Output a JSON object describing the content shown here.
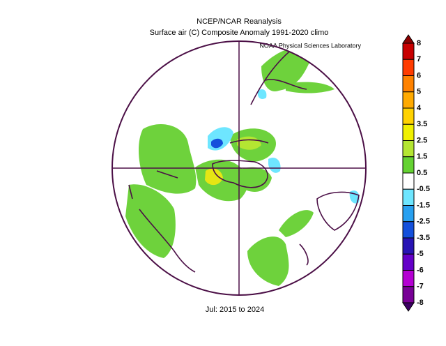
{
  "header": {
    "title": "NCEP/NCAR Reanalysis",
    "subtitle": "Surface air (C) Composite Anomaly 1991-2020 climo",
    "credit": "NOAA Physical Sciences Laboratory"
  },
  "footer": "Jul: 2015 to 2024",
  "colorbar": {
    "labels": [
      "8",
      "7",
      "6",
      "5",
      "4",
      "3.5",
      "2.5",
      "1.5",
      "0.5",
      "-0.5",
      "-1.5",
      "-2.5",
      "-3.5",
      "-5",
      "-6",
      "-7",
      "-8"
    ],
    "colors": [
      "#c80000",
      "#ff3c00",
      "#ff8200",
      "#ffaa00",
      "#ffd200",
      "#f0f000",
      "#b4e632",
      "#64d232",
      "#ffffff",
      "#6ee6ff",
      "#28a0f0",
      "#1450dc",
      "#2814b4",
      "#6400c8",
      "#b400d2",
      "#780096"
    ],
    "top_color": "#8c0000",
    "bottom_color": "#3c0064"
  }
}
